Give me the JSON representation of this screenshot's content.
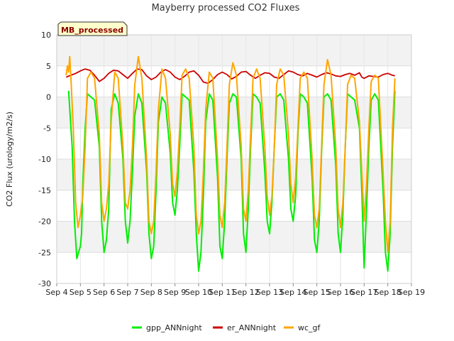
{
  "chart_data": {
    "type": "line",
    "title": "Mayberry processed CO2 Fluxes",
    "badge": "MB_processed",
    "xlabel": "",
    "ylabel": "CO2 Flux (urology/m2/s)",
    "ylim": [
      -30,
      10
    ],
    "yticks": [
      10,
      5,
      0,
      -5,
      -10,
      -15,
      -20,
      -25,
      -30
    ],
    "xlim": [
      4,
      19
    ],
    "xtick_labels": [
      "Sep 4",
      "Sep 5",
      "Sep 6",
      "Sep 7",
      "Sep 8",
      "Sep 9",
      "Sep 10",
      "Sep 11",
      "Sep 12",
      "Sep 13",
      "Sep 14",
      "Sep 15",
      "Sep 16",
      "Sep 17",
      "Sep 18",
      "Sep 19"
    ],
    "grid": true,
    "legend_position": "bottom",
    "series": [
      {
        "name": "gpp_ANNnight",
        "color": "#00ee00",
        "x": [
          4.5,
          4.65,
          4.75,
          4.85,
          5.0,
          5.05,
          5.1,
          5.2,
          5.3,
          5.45,
          5.6,
          5.8,
          5.9,
          6.0,
          6.1,
          6.2,
          6.25,
          6.3,
          6.45,
          6.6,
          6.8,
          6.9,
          7.0,
          7.1,
          7.2,
          7.3,
          7.45,
          7.6,
          7.8,
          7.9,
          8.0,
          8.1,
          8.2,
          8.3,
          8.45,
          8.6,
          8.8,
          8.9,
          9.0,
          9.1,
          9.2,
          9.3,
          9.45,
          9.6,
          9.8,
          9.9,
          10.0,
          10.1,
          10.2,
          10.3,
          10.45,
          10.6,
          10.8,
          10.9,
          11.0,
          11.1,
          11.2,
          11.3,
          11.45,
          11.6,
          11.8,
          11.9,
          12.0,
          12.1,
          12.2,
          12.3,
          12.45,
          12.6,
          12.8,
          12.9,
          13.0,
          13.1,
          13.2,
          13.3,
          13.45,
          13.6,
          13.8,
          13.9,
          14.0,
          14.1,
          14.2,
          14.3,
          14.45,
          14.6,
          14.8,
          14.9,
          15.0,
          15.1,
          15.2,
          15.3,
          15.45,
          15.6,
          15.8,
          15.9,
          16.0,
          16.1,
          16.2,
          16.3,
          16.45,
          16.6,
          16.8,
          16.9,
          17.0,
          17.1,
          17.2,
          17.3,
          17.45,
          17.6,
          17.8,
          17.9,
          18.0,
          18.1,
          18.2,
          18.3
        ],
        "y": [
          1.0,
          -8.0,
          -20.0,
          -26.0,
          -24.0,
          -22.0,
          -14.0,
          -5.0,
          0.5,
          0.0,
          -0.5,
          -8.0,
          -20.0,
          -25.0,
          -23.0,
          -18.0,
          -10.0,
          -2.0,
          0.5,
          -1.0,
          -10.0,
          -20.0,
          -23.5,
          -20.0,
          -12.0,
          -3.0,
          0.5,
          -1.0,
          -12.0,
          -22.0,
          -26.0,
          -24.0,
          -15.0,
          -4.0,
          0.0,
          -1.0,
          -9.0,
          -17.0,
          -19.0,
          -15.0,
          -8.0,
          0.5,
          0.0,
          -0.5,
          -12.0,
          -22.0,
          -28.0,
          -25.0,
          -16.0,
          -4.0,
          0.5,
          -0.5,
          -13.0,
          -24.0,
          -26.0,
          -20.0,
          -10.0,
          -1.0,
          0.5,
          0.0,
          -10.0,
          -22.0,
          -25.0,
          -18.0,
          -8.0,
          0.5,
          0.0,
          -1.0,
          -12.0,
          -20.0,
          -22.0,
          -17.0,
          -8.0,
          0.0,
          0.5,
          -0.5,
          -10.0,
          -18.0,
          -20.0,
          -16.0,
          -6.0,
          0.5,
          0.0,
          -1.0,
          -13.0,
          -23.0,
          -25.0,
          -20.0,
          -9.0,
          0.0,
          0.5,
          -0.5,
          -11.0,
          -22.0,
          -25.0,
          -19.0,
          -8.0,
          0.5,
          0.0,
          -0.5,
          -5.0,
          -15.0,
          -27.5,
          -18.0,
          -8.0,
          -0.5,
          0.5,
          -0.5,
          -15.0,
          -25.0,
          -28.0,
          -22.0,
          -8.0,
          1.0
        ]
      },
      {
        "name": "er_ANNnight",
        "color": "#cc0000",
        "x": [
          4.4,
          4.6,
          4.8,
          5.0,
          5.2,
          5.4,
          5.6,
          5.8,
          6.0,
          6.2,
          6.4,
          6.6,
          6.8,
          7.0,
          7.2,
          7.4,
          7.6,
          7.8,
          8.0,
          8.2,
          8.4,
          8.6,
          8.8,
          9.0,
          9.2,
          9.4,
          9.6,
          9.8,
          10.0,
          10.2,
          10.4,
          10.6,
          10.8,
          11.0,
          11.2,
          11.4,
          11.6,
          11.8,
          12.0,
          12.2,
          12.4,
          12.6,
          12.8,
          13.0,
          13.2,
          13.4,
          13.6,
          13.8,
          14.0,
          14.2,
          14.4,
          14.6,
          14.8,
          15.0,
          15.2,
          15.4,
          15.6,
          15.8,
          16.0,
          16.2,
          16.4,
          16.6,
          16.8,
          16.9,
          17.0,
          17.2,
          17.4,
          17.6,
          17.8,
          18.0,
          18.2,
          18.3
        ],
        "y": [
          3.2,
          3.5,
          3.8,
          4.2,
          4.5,
          4.3,
          3.5,
          2.5,
          3.0,
          3.8,
          4.3,
          4.2,
          3.6,
          3.0,
          3.8,
          4.5,
          4.4,
          3.4,
          2.8,
          3.2,
          4.0,
          4.4,
          4.0,
          3.2,
          2.8,
          3.3,
          4.0,
          4.2,
          3.5,
          2.4,
          2.2,
          2.8,
          3.6,
          4.0,
          3.6,
          2.9,
          3.3,
          4.0,
          4.1,
          3.5,
          3.0,
          3.5,
          3.9,
          3.8,
          3.2,
          3.0,
          3.6,
          4.2,
          4.0,
          3.6,
          3.4,
          3.8,
          3.5,
          3.2,
          3.6,
          3.9,
          3.7,
          3.4,
          3.3,
          3.6,
          3.8,
          3.5,
          3.9,
          3.2,
          3.0,
          3.4,
          3.3,
          3.2,
          3.6,
          3.8,
          3.5,
          3.4
        ]
      },
      {
        "name": "wc_gf",
        "color": "#ffa500",
        "x": [
          4.4,
          4.45,
          4.5,
          4.55,
          4.6,
          4.7,
          4.8,
          4.9,
          5.0,
          5.1,
          5.2,
          5.3,
          5.45,
          5.6,
          5.8,
          5.9,
          6.0,
          6.1,
          6.2,
          6.3,
          6.45,
          6.6,
          6.8,
          6.9,
          7.0,
          7.1,
          7.2,
          7.3,
          7.45,
          7.6,
          7.8,
          7.9,
          8.0,
          8.1,
          8.2,
          8.3,
          8.45,
          8.6,
          8.8,
          8.9,
          9.0,
          9.1,
          9.2,
          9.3,
          9.45,
          9.6,
          9.8,
          9.9,
          10.0,
          10.1,
          10.2,
          10.3,
          10.45,
          10.6,
          10.8,
          10.9,
          11.0,
          11.1,
          11.2,
          11.3,
          11.45,
          11.6,
          11.8,
          11.9,
          12.0,
          12.1,
          12.2,
          12.3,
          12.45,
          12.6,
          12.8,
          12.9,
          13.0,
          13.1,
          13.2,
          13.3,
          13.45,
          13.6,
          13.8,
          13.9,
          14.0,
          14.1,
          14.2,
          14.3,
          14.45,
          14.6,
          14.8,
          14.9,
          15.0,
          15.1,
          15.2,
          15.3,
          15.45,
          15.6,
          15.8,
          15.9,
          16.0,
          16.1,
          16.2,
          16.3,
          16.45,
          16.6,
          16.8,
          16.9,
          17.0,
          17.1,
          17.2,
          17.3,
          17.45,
          17.6,
          17.8,
          17.9,
          18.0,
          18.1,
          18.2,
          18.3
        ],
        "y": [
          3.5,
          5.0,
          4.0,
          6.5,
          3.0,
          -5.0,
          -17.0,
          -21.0,
          -19.0,
          -16.0,
          -8.0,
          3.0,
          4.0,
          3.0,
          -6.0,
          -17.0,
          -20.0,
          -18.0,
          -14.0,
          -4.0,
          4.0,
          3.0,
          -8.0,
          -17.0,
          -18.0,
          -15.0,
          -8.0,
          2.0,
          6.5,
          3.0,
          -10.0,
          -20.0,
          -22.0,
          -20.0,
          -12.0,
          -2.0,
          4.5,
          3.0,
          -6.0,
          -14.0,
          -16.0,
          -12.0,
          -5.0,
          3.5,
          4.5,
          3.0,
          -8.0,
          -19.0,
          -22.0,
          -20.0,
          -12.0,
          -2.0,
          4.0,
          3.0,
          -10.0,
          -19.0,
          -21.0,
          -17.0,
          -8.0,
          2.0,
          5.5,
          3.5,
          -8.0,
          -18.0,
          -20.0,
          -15.0,
          -6.0,
          3.0,
          4.5,
          3.0,
          -8.0,
          -16.0,
          -19.0,
          -16.0,
          -8.0,
          2.0,
          4.5,
          3.5,
          -6.0,
          -14.0,
          -17.0,
          -13.0,
          -5.0,
          3.0,
          4.0,
          3.0,
          -10.0,
          -19.0,
          -21.0,
          -18.0,
          -8.0,
          2.0,
          6.0,
          3.5,
          -8.0,
          -18.0,
          -21.0,
          -17.0,
          -8.0,
          2.0,
          3.5,
          3.0,
          -4.0,
          -12.0,
          -20.0,
          -14.0,
          -5.0,
          2.5,
          3.5,
          3.0,
          -12.0,
          -20.0,
          -25.0,
          -20.0,
          -5.0,
          3.0
        ]
      }
    ]
  }
}
